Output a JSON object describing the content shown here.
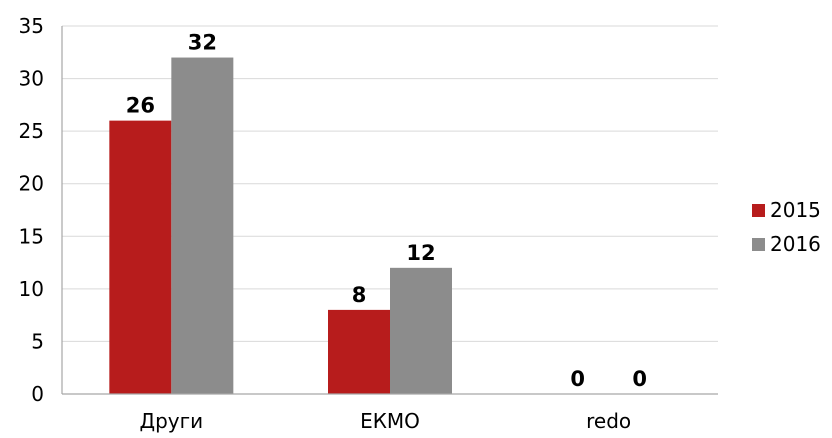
{
  "chart_data": {
    "type": "bar",
    "title": "",
    "xlabel": "",
    "ylabel": "",
    "categories": [
      "Други",
      "ЕКМО",
      "redo"
    ],
    "series": [
      {
        "name": "2015",
        "values": [
          26,
          8,
          0
        ],
        "color": "#b71c1c"
      },
      {
        "name": "2016",
        "values": [
          32,
          12,
          0
        ],
        "color": "#8c8c8c"
      }
    ],
    "ylim": [
      0,
      35
    ],
    "yticks": [
      "0",
      "5",
      "10",
      "15",
      "20",
      "25",
      "30",
      "35"
    ],
    "data_labels": [
      [
        "26",
        "8",
        "0"
      ],
      [
        "32",
        "12",
        "0"
      ]
    ],
    "grid": true,
    "legend_position": "right"
  }
}
